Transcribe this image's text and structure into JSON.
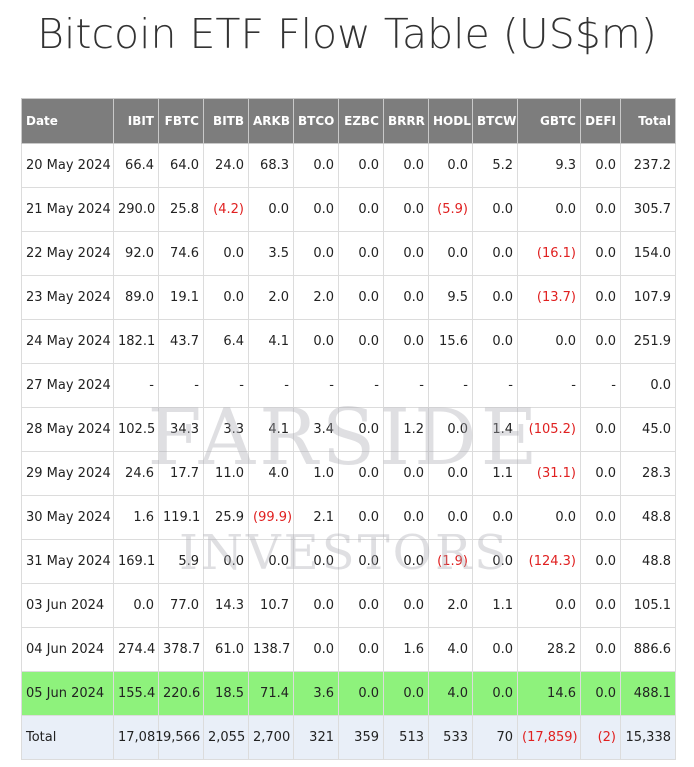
{
  "title": "Bitcoin ETF Flow Table (US$m)",
  "watermark": {
    "line1": "FARSIDE",
    "line2": "INVESTORS"
  },
  "columns": [
    "Date",
    "IBIT",
    "FBTC",
    "BITB",
    "ARKB",
    "BTCO",
    "EZBC",
    "BRRR",
    "HODL",
    "BTCW",
    "GBTC",
    "DEFI",
    "Total"
  ],
  "rows": [
    {
      "cells": [
        "20 May 2024",
        "66.4",
        "64.0",
        "24.0",
        "68.3",
        "0.0",
        "0.0",
        "0.0",
        "0.0",
        "5.2",
        "9.3",
        "0.0",
        "237.2"
      ]
    },
    {
      "cells": [
        "21 May 2024",
        "290.0",
        "25.8",
        "(4.2)",
        "0.0",
        "0.0",
        "0.0",
        "0.0",
        "(5.9)",
        "0.0",
        "0.0",
        "0.0",
        "305.7"
      ]
    },
    {
      "cells": [
        "22 May 2024",
        "92.0",
        "74.6",
        "0.0",
        "3.5",
        "0.0",
        "0.0",
        "0.0",
        "0.0",
        "0.0",
        "(16.1)",
        "0.0",
        "154.0"
      ]
    },
    {
      "cells": [
        "23 May 2024",
        "89.0",
        "19.1",
        "0.0",
        "2.0",
        "2.0",
        "0.0",
        "0.0",
        "9.5",
        "0.0",
        "(13.7)",
        "0.0",
        "107.9"
      ]
    },
    {
      "cells": [
        "24 May 2024",
        "182.1",
        "43.7",
        "6.4",
        "4.1",
        "0.0",
        "0.0",
        "0.0",
        "15.6",
        "0.0",
        "0.0",
        "0.0",
        "251.9"
      ]
    },
    {
      "cells": [
        "27 May 2024",
        "-",
        "-",
        "-",
        "-",
        "-",
        "-",
        "-",
        "-",
        "-",
        "-",
        "-",
        "0.0"
      ]
    },
    {
      "cells": [
        "28 May 2024",
        "102.5",
        "34.3",
        "3.3",
        "4.1",
        "3.4",
        "0.0",
        "1.2",
        "0.0",
        "1.4",
        "(105.2)",
        "0.0",
        "45.0"
      ]
    },
    {
      "cells": [
        "29 May 2024",
        "24.6",
        "17.7",
        "11.0",
        "4.0",
        "1.0",
        "0.0",
        "0.0",
        "0.0",
        "1.1",
        "(31.1)",
        "0.0",
        "28.3"
      ]
    },
    {
      "cells": [
        "30 May 2024",
        "1.6",
        "119.1",
        "25.9",
        "(99.9)",
        "2.1",
        "0.0",
        "0.0",
        "0.0",
        "0.0",
        "0.0",
        "0.0",
        "48.8"
      ]
    },
    {
      "cells": [
        "31 May 2024",
        "169.1",
        "5.9",
        "0.0",
        "0.0",
        "0.0",
        "0.0",
        "0.0",
        "(1.9)",
        "0.0",
        "(124.3)",
        "0.0",
        "48.8"
      ]
    },
    {
      "cells": [
        "03 Jun 2024",
        "0.0",
        "77.0",
        "14.3",
        "10.7",
        "0.0",
        "0.0",
        "0.0",
        "2.0",
        "1.1",
        "0.0",
        "0.0",
        "105.1"
      ]
    },
    {
      "cells": [
        "04 Jun 2024",
        "274.4",
        "378.7",
        "61.0",
        "138.7",
        "0.0",
        "0.0",
        "1.6",
        "4.0",
        "0.0",
        "28.2",
        "0.0",
        "886.6"
      ]
    },
    {
      "cells": [
        "05 Jun 2024",
        "155.4",
        "220.6",
        "18.5",
        "71.4",
        "3.6",
        "0.0",
        "0.0",
        "4.0",
        "0.0",
        "14.6",
        "0.0",
        "488.1"
      ],
      "highlight": true
    }
  ],
  "total_row": [
    "Total",
    "17,081",
    "9,566",
    "2,055",
    "2,700",
    "321",
    "359",
    "513",
    "533",
    "70",
    "(17,859)",
    "(2)",
    "15,338"
  ],
  "colors": {
    "header_bg": "#7d7d7d",
    "highlight_bg": "#8ef27c",
    "total_bg": "#e9eff8",
    "negative": "#e02020"
  }
}
